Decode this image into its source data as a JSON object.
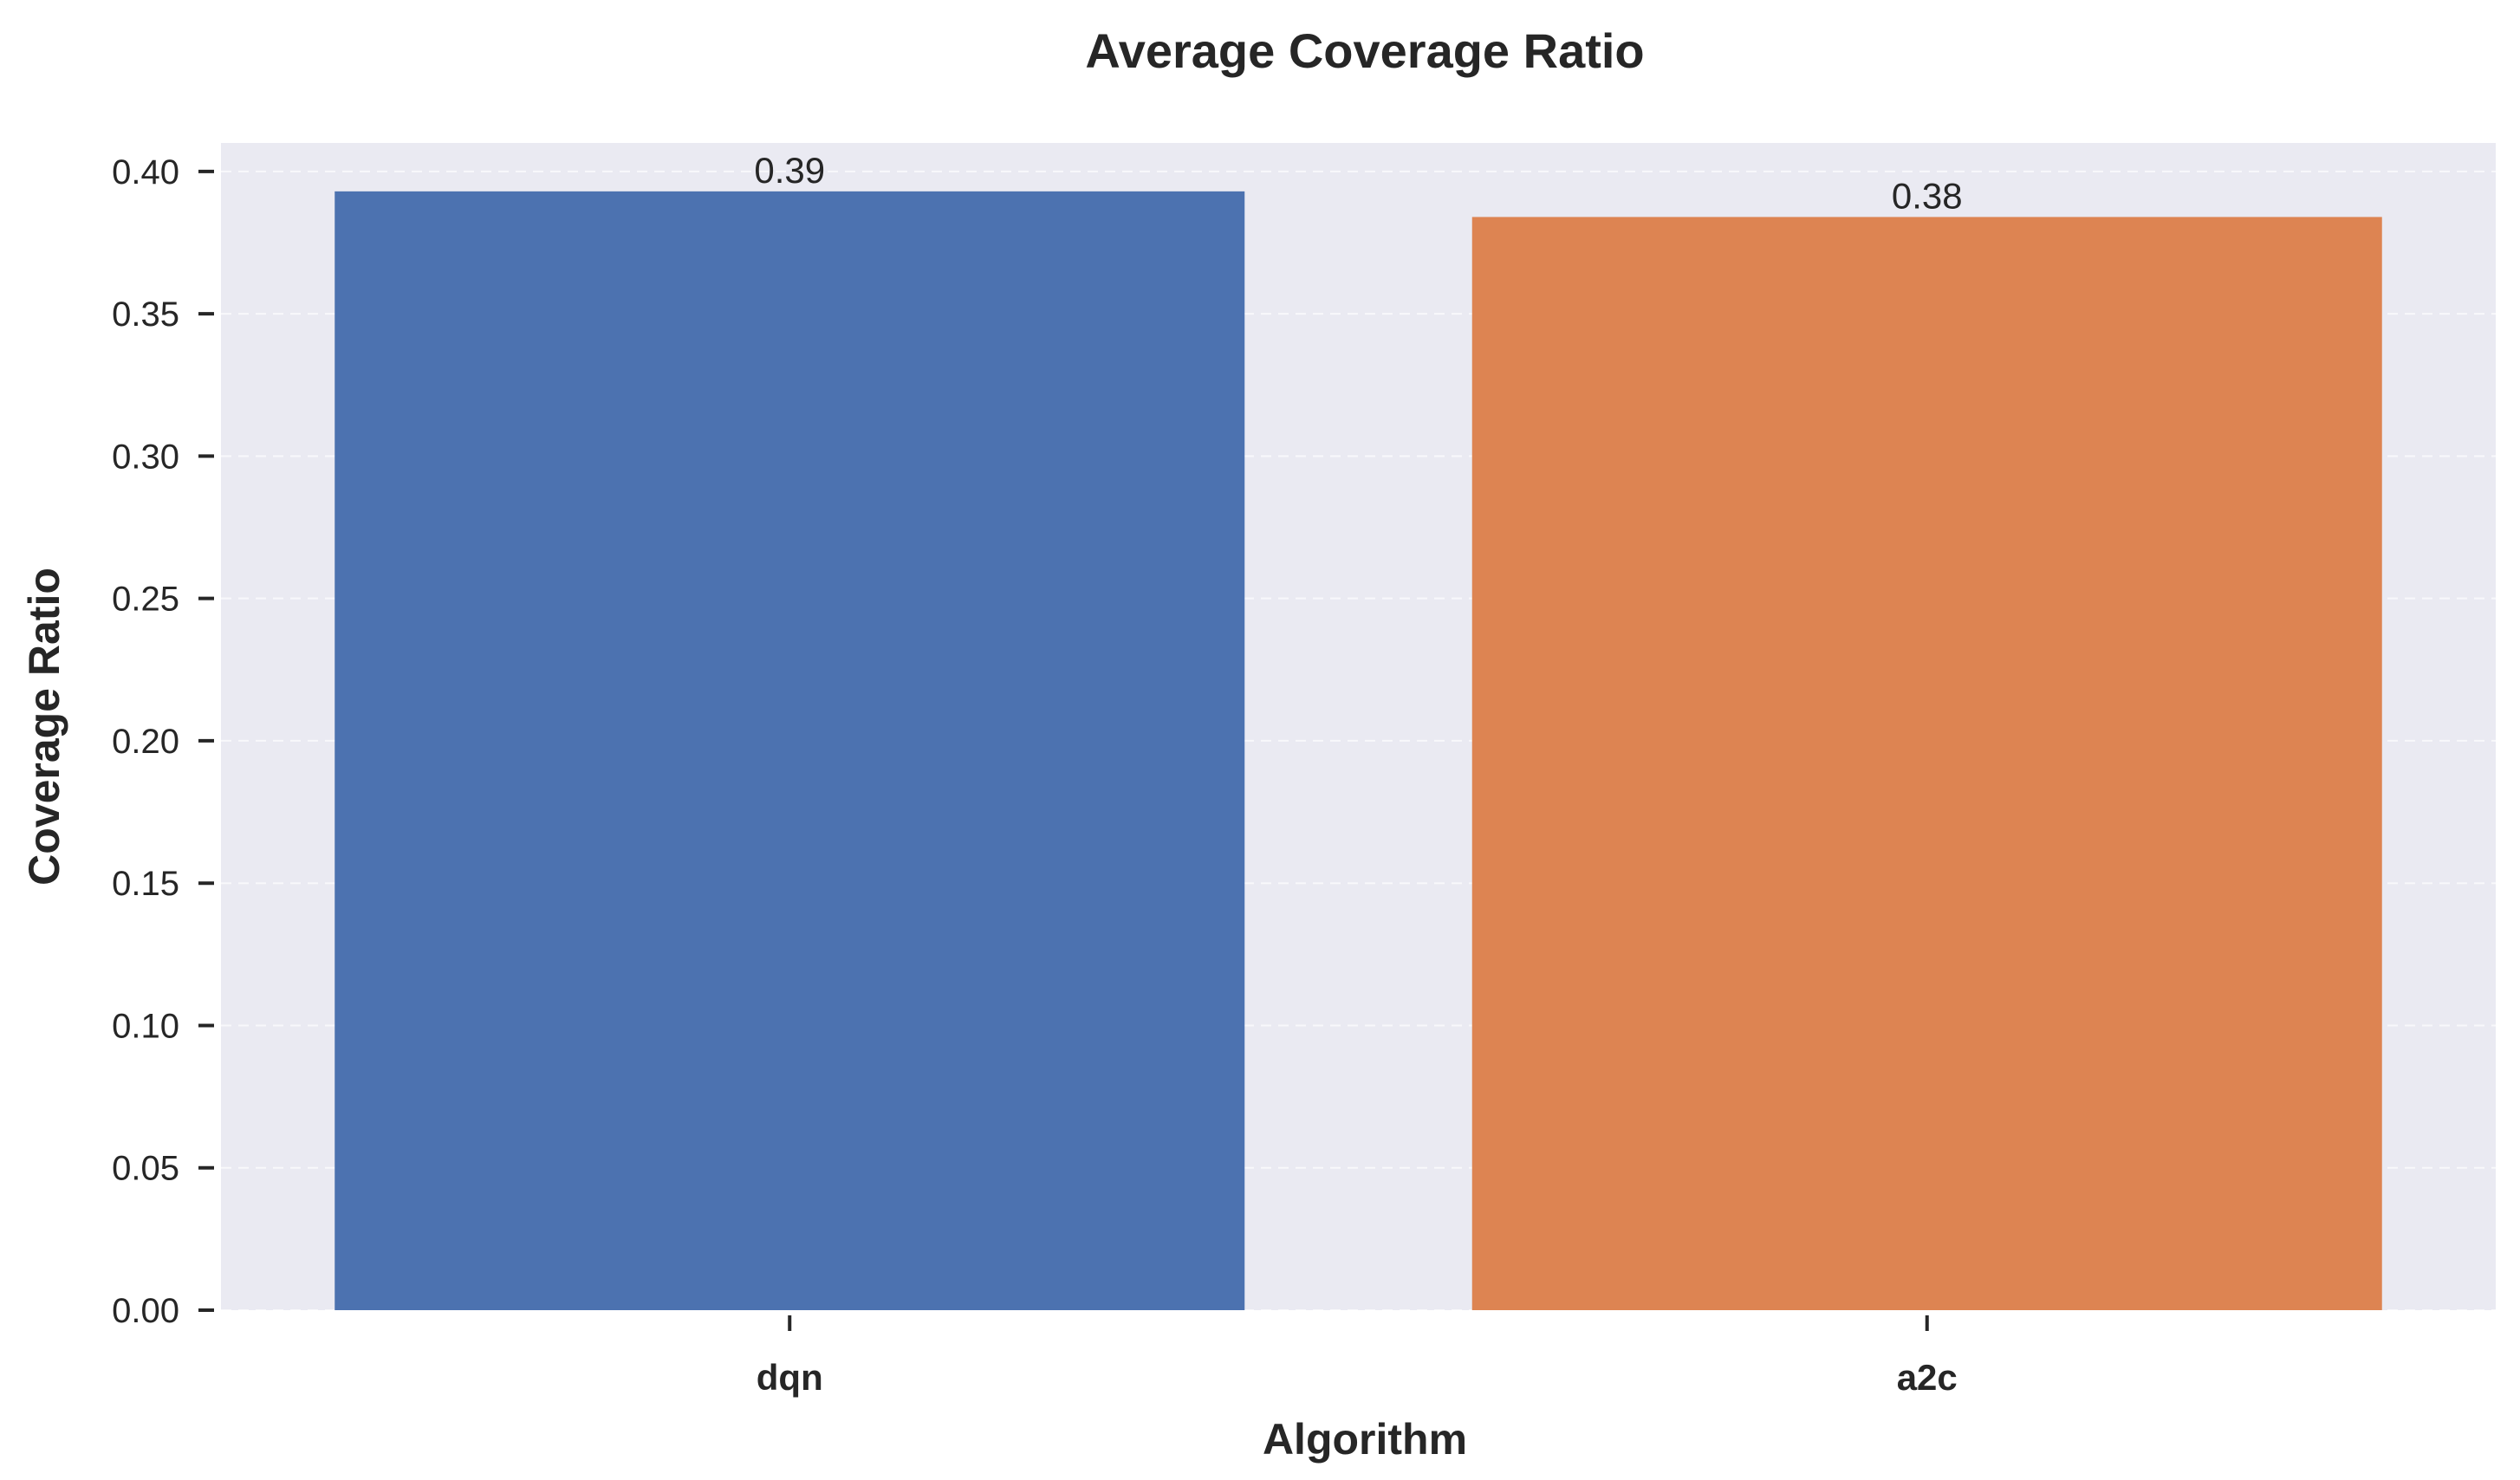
{
  "chart_data": {
    "type": "bar",
    "title": "Average Coverage Ratio",
    "xlabel": "Algorithm",
    "ylabel": "Coverage Ratio",
    "categories": [
      "dqn",
      "a2c"
    ],
    "values": [
      0.393,
      0.384
    ],
    "data_labels": [
      "0.39",
      "0.38"
    ],
    "colors": [
      "#4c72b0",
      "#dd8452"
    ],
    "ylim": [
      0,
      0.41
    ],
    "yticks": [
      0.0,
      0.05,
      0.1,
      0.15,
      0.2,
      0.25,
      0.3,
      0.35,
      0.4
    ],
    "ytick_labels": [
      "0.00",
      "0.05",
      "0.10",
      "0.15",
      "0.20",
      "0.25",
      "0.30",
      "0.35",
      "0.40"
    ],
    "grid": true,
    "background_color": "#eaeaf2"
  }
}
